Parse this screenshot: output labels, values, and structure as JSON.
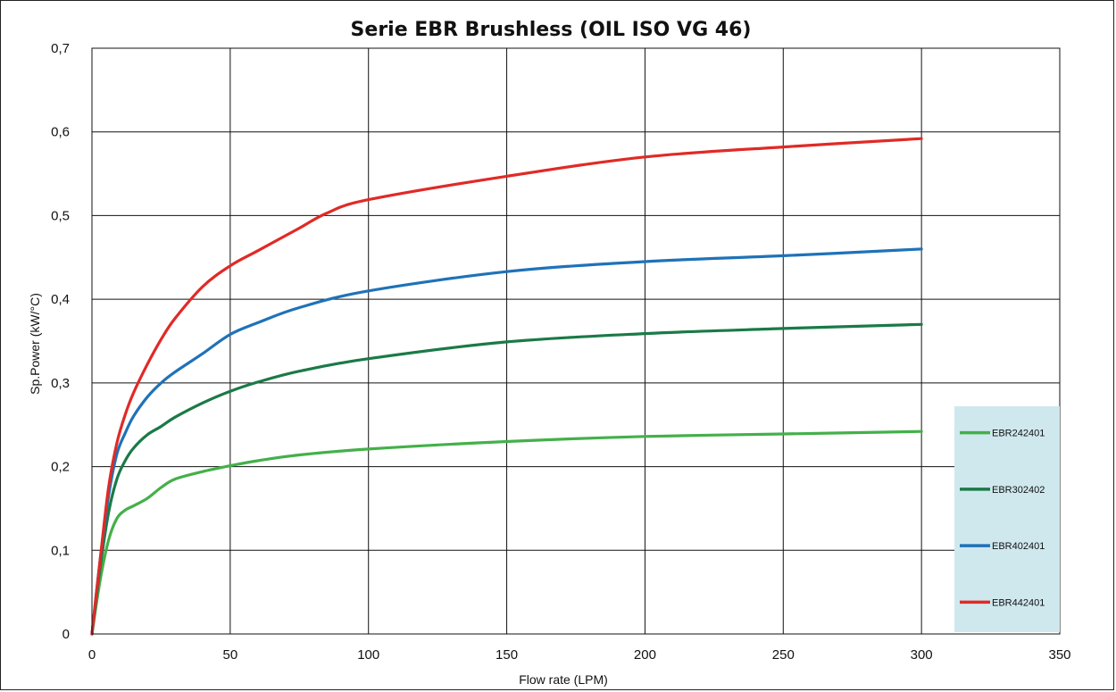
{
  "chart_data": {
    "type": "line",
    "title": "Serie EBR Brushless (OIL ISO VG 46)",
    "xlabel": "Flow rate (LPM)",
    "ylabel": "Sp.Power (kW/°C)",
    "xlim": [
      0,
      350
    ],
    "ylim": [
      0,
      0.7
    ],
    "x_ticks": [
      0,
      50,
      100,
      150,
      200,
      250,
      300,
      350
    ],
    "x_tick_labels": [
      "0",
      "50",
      "100",
      "150",
      "200",
      "250",
      "300",
      "350"
    ],
    "y_ticks": [
      0,
      0.1,
      0.2,
      0.3,
      0.4,
      0.5,
      0.6,
      0.7
    ],
    "y_tick_labels": [
      "0",
      "0,1",
      "0,2",
      "0,3",
      "0,4",
      "0,5",
      "0,6",
      "0,7"
    ],
    "grid": true,
    "legend_position": "right",
    "series": [
      {
        "name": "EBR242401",
        "color": "#44b04a",
        "x": [
          0,
          3,
          6,
          9,
          12,
          15,
          20,
          25,
          30,
          40,
          50,
          60,
          75,
          100,
          150,
          200,
          250,
          300
        ],
        "y": [
          0,
          0.065,
          0.112,
          0.138,
          0.148,
          0.153,
          0.162,
          0.175,
          0.185,
          0.194,
          0.201,
          0.207,
          0.214,
          0.221,
          0.23,
          0.236,
          0.239,
          0.242
        ]
      },
      {
        "name": "EBR302402",
        "color": "#1a7a47",
        "x": [
          0,
          3,
          6,
          9,
          12,
          15,
          20,
          25,
          30,
          40,
          50,
          60,
          75,
          100,
          150,
          200,
          250,
          300
        ],
        "y": [
          0,
          0.08,
          0.145,
          0.185,
          0.207,
          0.222,
          0.238,
          0.248,
          0.259,
          0.276,
          0.29,
          0.301,
          0.314,
          0.329,
          0.349,
          0.359,
          0.365,
          0.37
        ]
      },
      {
        "name": "EBR402401",
        "color": "#1f72b8",
        "x": [
          0,
          3,
          6,
          9,
          12,
          15,
          20,
          25,
          30,
          40,
          50,
          60,
          75,
          100,
          150,
          200,
          250,
          300
        ],
        "y": [
          0,
          0.09,
          0.165,
          0.215,
          0.24,
          0.26,
          0.283,
          0.3,
          0.313,
          0.335,
          0.358,
          0.372,
          0.39,
          0.41,
          0.433,
          0.445,
          0.452,
          0.46
        ]
      },
      {
        "name": "EBR442401",
        "color": "#e02a26",
        "x": [
          0,
          3,
          6,
          9,
          12,
          15,
          20,
          25,
          30,
          40,
          50,
          60,
          75,
          85,
          100,
          150,
          200,
          250,
          300
        ],
        "y": [
          0,
          0.09,
          0.175,
          0.228,
          0.262,
          0.288,
          0.322,
          0.352,
          0.377,
          0.415,
          0.44,
          0.458,
          0.485,
          0.503,
          0.519,
          0.547,
          0.57,
          0.582,
          0.592
        ]
      }
    ]
  }
}
